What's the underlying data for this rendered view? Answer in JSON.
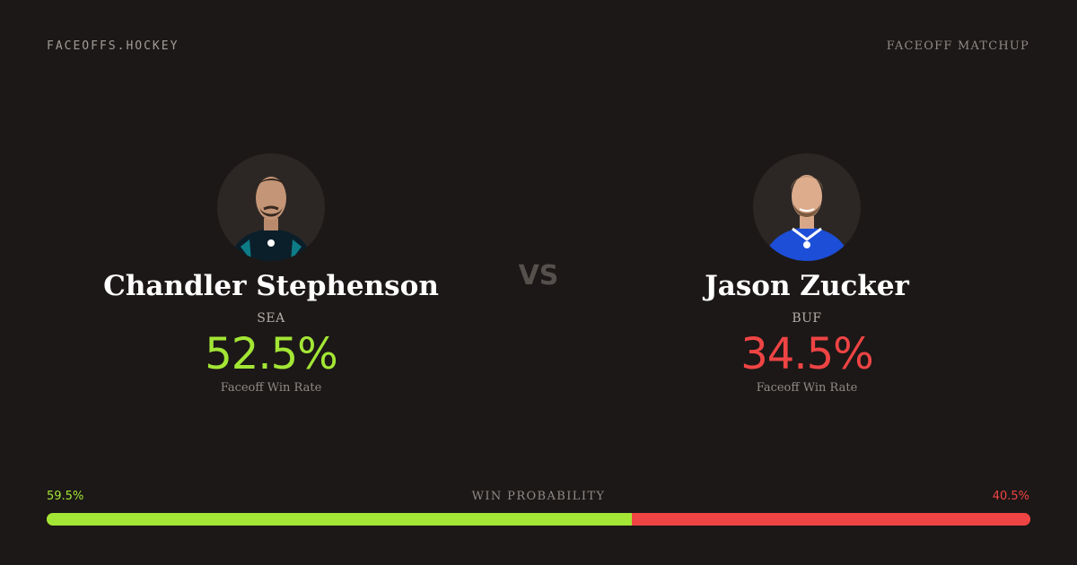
{
  "header": {
    "brand": "FACEOFFS.HOCKEY",
    "matchup_label": "FACEOFF MATCHUP"
  },
  "players": [
    {
      "name": "Chandler Stephenson",
      "team": "SEA",
      "faceoff_win_rate": "52.5%",
      "rate_label": "Faceoff Win Rate",
      "jersey_color": "#0b1f2a",
      "rate_color": "#a3e635"
    },
    {
      "name": "Jason Zucker",
      "team": "BUF",
      "faceoff_win_rate": "34.5%",
      "rate_label": "Faceoff Win Rate",
      "jersey_color": "#1d4ed8",
      "rate_color": "#ef4444"
    }
  ],
  "vs_label": "VS",
  "win_probability": {
    "title": "WIN PROBABILITY",
    "left_label": "59.5%",
    "right_label": "40.5%",
    "left_value": 59.5,
    "right_value": 40.5,
    "left_color": "#a3e635",
    "right_color": "#ef4444"
  }
}
